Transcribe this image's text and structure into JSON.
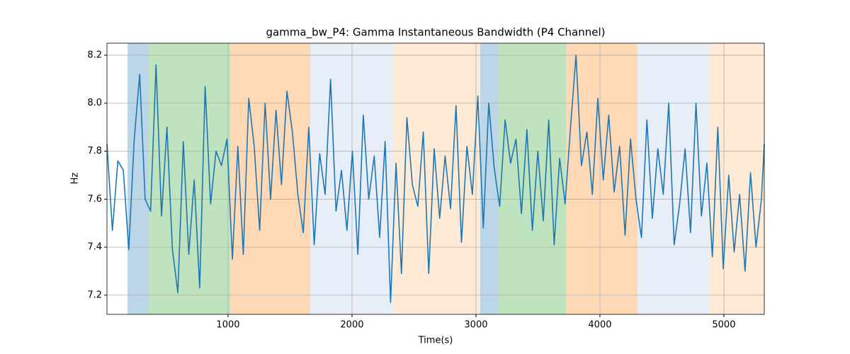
{
  "chart_data": {
    "type": "line",
    "title": "gamma_bw_P4: Gamma Instantaneous Bandwidth (P4 Channel)",
    "xlabel": "Time(s)",
    "ylabel": "Hz",
    "xlim": [
      23,
      5326
    ],
    "ylim": [
      7.12,
      8.25
    ],
    "xticks": [
      1000,
      2000,
      3000,
      4000,
      5000
    ],
    "yticks": [
      7.2,
      7.4,
      7.6,
      7.8,
      {
        "value": 8,
        "label": "8.0"
      },
      8.2
    ],
    "grid": true,
    "spans": [
      {
        "x0": 189,
        "x1": 360,
        "color": "#1f77b4",
        "alpha": 0.3
      },
      {
        "x0": 360,
        "x1": 1017,
        "color": "#2ca02c",
        "alpha": 0.3
      },
      {
        "x0": 1017,
        "x1": 1663,
        "color": "#ff7f0e",
        "alpha": 0.3
      },
      {
        "x0": 1663,
        "x1": 2337,
        "color": "#aec7e8",
        "alpha": 0.3
      },
      {
        "x0": 2337,
        "x1": 3034,
        "color": "#ffbb78",
        "alpha": 0.3
      },
      {
        "x0": 3034,
        "x1": 3183,
        "color": "#1f77b4",
        "alpha": 0.3
      },
      {
        "x0": 3183,
        "x1": 3726,
        "color": "#2ca02c",
        "alpha": 0.3
      },
      {
        "x0": 3726,
        "x1": 4303,
        "color": "#ff7f0e",
        "alpha": 0.3
      },
      {
        "x0": 4303,
        "x1": 4886,
        "color": "#aec7e8",
        "alpha": 0.3
      },
      {
        "x0": 4886,
        "x1": 5326,
        "color": "#ffbb78",
        "alpha": 0.3
      }
    ],
    "series": [
      {
        "color": "#1f77b4",
        "x": [
          23,
          67,
          111,
          155,
          199,
          243,
          287,
          331,
          375,
          419,
          463,
          507,
          551,
          595,
          639,
          683,
          727,
          771,
          815,
          859,
          903,
          947,
          991,
          1035,
          1079,
          1123,
          1167,
          1211,
          1255,
          1299,
          1343,
          1387,
          1431,
          1475,
          1519,
          1563,
          1607,
          1651,
          1695,
          1739,
          1783,
          1827,
          1871,
          1915,
          1959,
          2003,
          2047,
          2091,
          2135,
          2179,
          2223,
          2267,
          2311,
          2355,
          2399,
          2443,
          2487,
          2531,
          2575,
          2619,
          2663,
          2707,
          2751,
          2795,
          2839,
          2883,
          2927,
          2971,
          3015,
          3059,
          3103,
          3147,
          3191,
          3235,
          3279,
          3323,
          3367,
          3411,
          3455,
          3499,
          3543,
          3587,
          3631,
          3675,
          3719,
          3763,
          3807,
          3851,
          3895,
          3939,
          3983,
          4027,
          4071,
          4115,
          4159,
          4203,
          4247,
          4291,
          4335,
          4379,
          4423,
          4467,
          4511,
          4555,
          4599,
          4643,
          4687,
          4731,
          4775,
          4819,
          4863,
          4907,
          4951,
          4995,
          5039,
          5083,
          5127,
          5171,
          5215,
          5259,
          5303,
          5326
        ],
        "values": [
          7.83,
          7.47,
          7.76,
          7.72,
          7.39,
          7.85,
          8.12,
          7.6,
          7.55,
          8.16,
          7.53,
          7.9,
          7.39,
          7.21,
          7.84,
          7.37,
          7.68,
          7.23,
          8.07,
          7.58,
          7.8,
          7.74,
          7.85,
          7.35,
          7.82,
          7.37,
          8.02,
          7.82,
          7.47,
          8.0,
          7.6,
          7.97,
          7.66,
          8.05,
          7.88,
          7.62,
          7.46,
          7.9,
          7.41,
          7.79,
          7.62,
          8.1,
          7.55,
          7.72,
          7.47,
          7.8,
          7.37,
          7.95,
          7.6,
          7.78,
          7.44,
          7.84,
          7.17,
          7.75,
          7.29,
          7.94,
          7.66,
          7.57,
          7.88,
          7.29,
          7.81,
          7.52,
          7.78,
          7.56,
          7.99,
          7.42,
          7.82,
          7.62,
          8.03,
          7.48,
          8.0,
          7.73,
          7.57,
          7.93,
          7.75,
          7.85,
          7.54,
          7.89,
          7.47,
          7.8,
          7.51,
          7.93,
          7.41,
          7.77,
          7.58,
          7.9,
          8.2,
          7.74,
          7.88,
          7.62,
          8.02,
          7.68,
          7.95,
          7.63,
          7.82,
          7.45,
          7.85,
          7.6,
          7.44,
          7.93,
          7.52,
          7.81,
          7.62,
          8.0,
          7.41,
          7.58,
          7.81,
          7.46,
          8.0,
          7.53,
          7.75,
          7.36,
          7.9,
          7.31,
          7.7,
          7.38,
          7.62,
          7.3,
          7.71,
          7.4,
          7.6,
          7.83
        ]
      }
    ]
  }
}
